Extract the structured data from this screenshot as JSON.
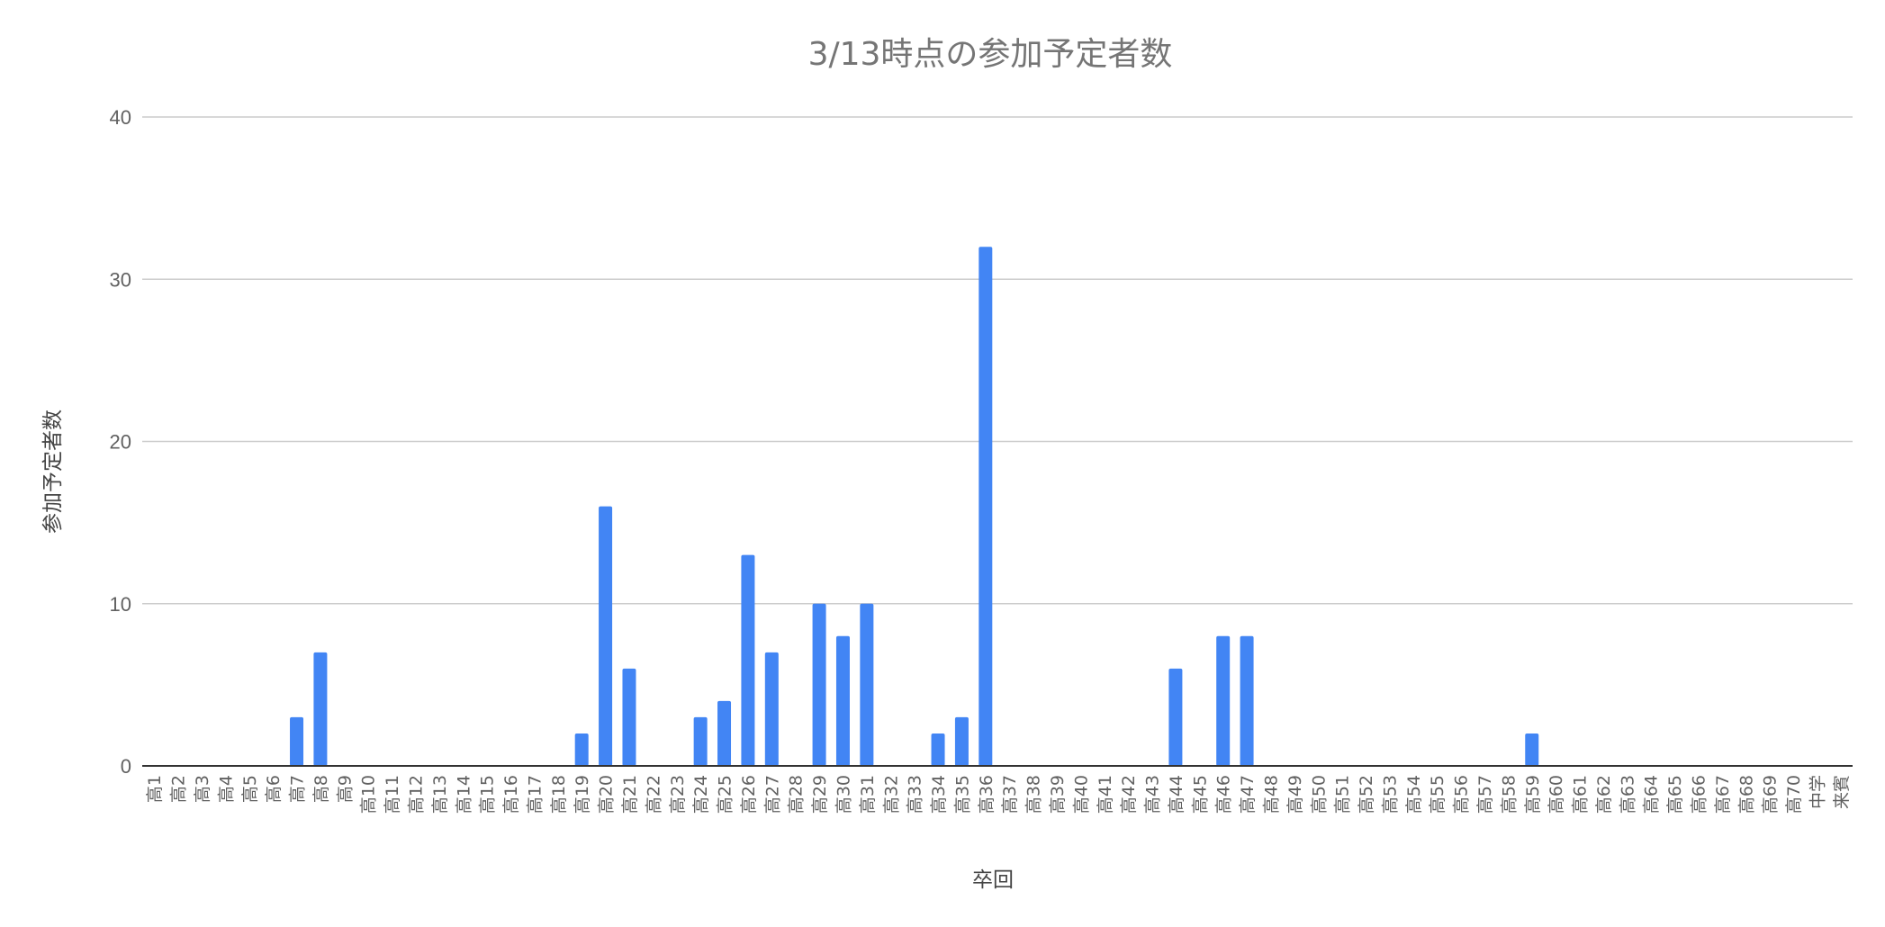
{
  "chart_data": {
    "type": "bar",
    "title": "3/13時点の参加予定者数",
    "xlabel": "卒回",
    "ylabel": "参加予定者数",
    "ylim": [
      0,
      40
    ],
    "yticks": [
      0,
      10,
      20,
      30,
      40
    ],
    "grid": true,
    "bar_color": "#4285f4",
    "categories": [
      "高1",
      "高2",
      "高3",
      "高4",
      "高5",
      "高6",
      "高7",
      "高8",
      "高9",
      "高10",
      "高11",
      "高12",
      "高13",
      "高14",
      "高15",
      "高16",
      "高17",
      "高18",
      "高19",
      "高20",
      "高21",
      "高22",
      "高23",
      "高24",
      "高25",
      "高26",
      "高27",
      "高28",
      "高29",
      "高30",
      "高31",
      "高32",
      "高33",
      "高34",
      "高35",
      "高36",
      "高37",
      "高38",
      "高39",
      "高40",
      "高41",
      "高42",
      "高43",
      "高44",
      "高45",
      "高46",
      "高47",
      "高48",
      "高49",
      "高50",
      "高51",
      "高52",
      "高53",
      "高54",
      "高55",
      "高56",
      "高57",
      "高58",
      "高59",
      "高60",
      "高61",
      "高62",
      "高63",
      "高64",
      "高65",
      "高66",
      "高67",
      "高68",
      "高69",
      "高70",
      "中学",
      "来賓"
    ],
    "values": [
      0,
      0,
      0,
      0,
      0,
      0,
      3,
      7,
      0,
      0,
      0,
      0,
      0,
      0,
      0,
      0,
      0,
      0,
      2,
      16,
      6,
      0,
      0,
      3,
      4,
      13,
      7,
      0,
      10,
      8,
      10,
      0,
      0,
      2,
      3,
      32,
      0,
      0,
      0,
      0,
      0,
      0,
      0,
      6,
      0,
      8,
      8,
      0,
      0,
      0,
      0,
      0,
      0,
      0,
      0,
      0,
      0,
      0,
      2,
      0,
      0,
      0,
      0,
      0,
      0,
      0,
      0,
      0,
      0,
      0,
      0,
      0
    ]
  }
}
